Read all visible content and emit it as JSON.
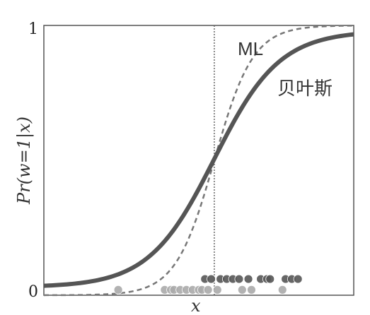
{
  "chart_data": {
    "type": "line",
    "xlabel": "x",
    "ylabel": "Pr(w=1|x)",
    "xlim": [
      0,
      1
    ],
    "ylim": [
      0,
      1
    ],
    "grid": false,
    "y_ticks": [
      {
        "value": 0,
        "label": "0"
      },
      {
        "value": 1,
        "label": "1"
      }
    ],
    "decision_boundary_x": 0.55,
    "series": [
      {
        "name": "ML",
        "style": "dashed",
        "color": "#777777",
        "k": 16,
        "x0": 0.55,
        "ymin": 0.0,
        "ymax": 1.0
      },
      {
        "name": "贝叶斯",
        "style": "solid",
        "color": "#555555",
        "k": 9.5,
        "x0": 0.55,
        "ymin": 0.03,
        "ymax": 0.98
      }
    ],
    "samples": {
      "class_1": {
        "y": 0.06,
        "color": "#555555",
        "x": [
          0.52,
          0.54,
          0.57,
          0.59,
          0.61,
          0.63,
          0.66,
          0.7,
          0.72,
          0.73,
          0.78,
          0.8,
          0.82
        ]
      },
      "class_0": {
        "y": 0.02,
        "color": "#aaaaaa",
        "x": [
          0.24,
          0.39,
          0.41,
          0.42,
          0.44,
          0.46,
          0.48,
          0.5,
          0.51,
          0.53,
          0.56,
          0.64,
          0.67,
          0.77
        ]
      }
    },
    "annotations": [
      {
        "text": "ML",
        "series": "ML"
      },
      {
        "text": "贝叶斯",
        "series": "贝叶斯"
      }
    ]
  }
}
